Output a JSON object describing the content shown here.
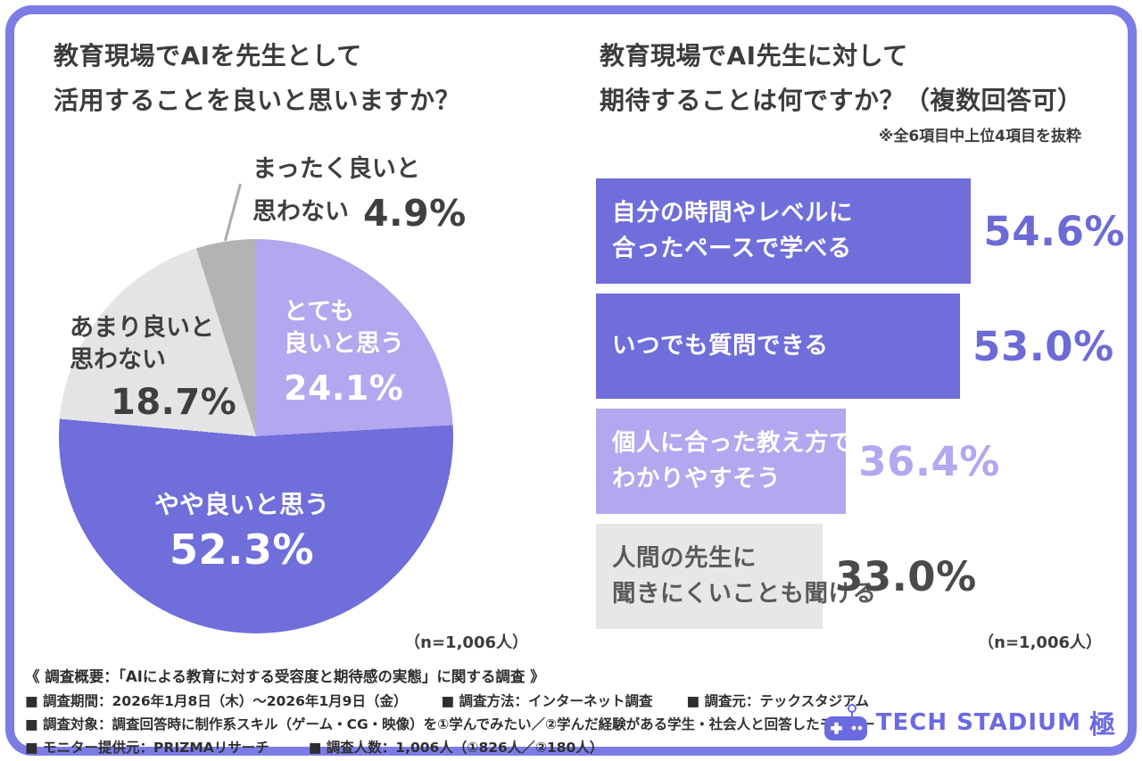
{
  "frame": {
    "border_color": "#7c7ce6"
  },
  "pie_section": {
    "title_line1": "教育現場でAIを先生として",
    "title_line2": "活用することを良いと思いますか？",
    "n_label": "（n=1,006人）",
    "labels": {
      "totemo": {
        "line1": "とても",
        "line2": "良いと思う",
        "value": "24.1%"
      },
      "yaya": {
        "line1": "やや良いと思う",
        "value": "52.3%"
      },
      "amari": {
        "line1": "あまり良いと",
        "line2": "思わない",
        "value": "18.7%"
      },
      "mattaku": {
        "line1": "まったく良いと",
        "line2": "思わない",
        "value": "4.9%"
      }
    }
  },
  "bar_section": {
    "title_line1": "教育現場でAI先生に対して",
    "title_line2": "期待することは何ですか？（複数回答可）",
    "note": "※全6項目中上位4項目を抜粋",
    "n_label": "（n=1,006人）",
    "bars": [
      {
        "label_line1": "自分の時間やレベルに",
        "label_line2": "合ったペースで学べる",
        "value_text": "54.6%"
      },
      {
        "label_line1": "いつでも質問できる",
        "label_line2": "",
        "value_text": "53.0%"
      },
      {
        "label_line1": "個人に合った教え方で",
        "label_line2": "わかりやすそう",
        "value_text": "36.4%"
      },
      {
        "label_line1": "人間の先生に",
        "label_line2": "聞きにくいことも聞ける",
        "value_text": "33.0%"
      }
    ]
  },
  "chart_data": [
    {
      "type": "pie",
      "title": "教育現場でAIを先生として活用することを良いと思いますか？",
      "n": "n=1,006人",
      "start_angle_deg": 0,
      "direction": "clockwise",
      "slices": [
        {
          "label": "とても良いと思う",
          "value": 24.1,
          "color": "#b3a7ef"
        },
        {
          "label": "やや良いと思う",
          "value": 52.3,
          "color": "#6f6eda"
        },
        {
          "label": "あまり良いと思わない",
          "value": 18.7,
          "color": "#e4e4e6"
        },
        {
          "label": "まったく良いと思わない",
          "value": 4.9,
          "color": "#b3b3b5"
        }
      ]
    },
    {
      "type": "bar",
      "orientation": "horizontal",
      "title": "教育現場でAI先生に対して期待することは何ですか？（複数回答可）",
      "note": "※全6項目中上位4項目を抜粋",
      "n": "n=1,006人",
      "categories": [
        "自分の時間やレベルに合ったペースで学べる",
        "いつでも質問できる",
        "個人に合った教え方でわかりやすそう",
        "人間の先生に聞きにくいことも聞ける"
      ],
      "values": [
        54.6,
        53.0,
        36.4,
        33.0
      ],
      "xlim": [
        0,
        60
      ],
      "bar_colors": [
        "#6f6eda",
        "#6f6eda",
        "#b3a7ef",
        "#e7e7e9"
      ],
      "label_colors": [
        "#ffffff",
        "#ffffff",
        "#ffffff",
        "#5a5a5c"
      ],
      "value_colors": [
        "#6c6bd6",
        "#6c6bd6",
        "#b3a7ef",
        "#4a4a4c"
      ]
    }
  ],
  "footer": {
    "overview": "《 調査概要：「AIによる教育に対する受容度と期待感の実態」に関する調査 》",
    "items_line2": [
      "■ 調査期間：2026年1月8日（木）〜2026年1月9日（金）",
      "■ 調査方法：インターネット調査",
      "■ 調査元：テックスタジアム"
    ],
    "line3": "■ 調査対象：調査回答時に制作系スキル（ゲーム・CG・映像）を①学んでみたい／②学んだ経験がある学生・社会人と回答したモニター",
    "items_line4": [
      "■ モニター提供元：PRIZMAリサーチ",
      "■ 調査人数：1,006人（①826人／②180人）"
    ]
  },
  "logo": {
    "text": "TECH STADIUM",
    "suffix": "極",
    "color": "#6b6ae0"
  }
}
